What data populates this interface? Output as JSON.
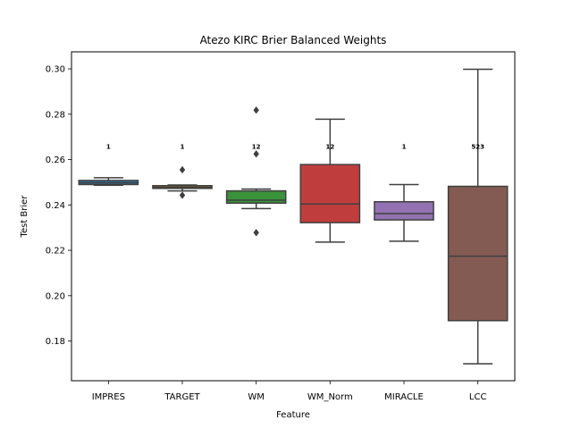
{
  "chart_data": {
    "type": "box",
    "title": "Atezo KIRC Brier Balanced Weights",
    "xlabel": "Feature",
    "ylabel": "Test Brier",
    "ylim": [
      0.1625,
      0.3075
    ],
    "yticks": [
      0.18,
      0.2,
      0.22,
      0.24,
      0.26,
      0.28,
      0.3
    ],
    "ytick_labels": [
      "0.18",
      "0.20",
      "0.22",
      "0.24",
      "0.26",
      "0.28",
      "0.30"
    ],
    "grid": false,
    "categories": [
      "IMPRES",
      "TARGET",
      "WM",
      "WM_Norm",
      "MIRACLE",
      "LCC"
    ],
    "annotation_y": 0.266,
    "boxes": [
      {
        "category": "IMPRES",
        "color": "#3274a1",
        "whisker_low": 0.2487,
        "q1": 0.249,
        "median": 0.2498,
        "q3": 0.2508,
        "whisker_high": 0.252,
        "outliers": [],
        "annotation": "1"
      },
      {
        "category": "TARGET",
        "color": "#e1812c",
        "whisker_low": 0.2462,
        "q1": 0.2473,
        "median": 0.2478,
        "q3": 0.2485,
        "whisker_high": 0.2488,
        "outliers": [
          0.2555,
          0.2443
        ],
        "annotation": "1"
      },
      {
        "category": "WM",
        "color": "#3a923a",
        "whisker_low": 0.2384,
        "q1": 0.2408,
        "median": 0.2421,
        "q3": 0.2462,
        "whisker_high": 0.247,
        "outliers": [
          0.2818,
          0.2625,
          0.2278
        ],
        "annotation": "12"
      },
      {
        "category": "WM_Norm",
        "color": "#c03d3e",
        "whisker_low": 0.2236,
        "q1": 0.2322,
        "median": 0.2404,
        "q3": 0.2578,
        "whisker_high": 0.2778,
        "outliers": [],
        "annotation": "12"
      },
      {
        "category": "MIRACLE",
        "color": "#9372b2",
        "whisker_low": 0.224,
        "q1": 0.2334,
        "median": 0.2362,
        "q3": 0.2414,
        "whisker_high": 0.249,
        "outliers": [],
        "annotation": "1"
      },
      {
        "category": "LCC",
        "color": "#845b53",
        "whisker_low": 0.17,
        "q1": 0.189,
        "median": 0.2174,
        "q3": 0.2482,
        "whisker_high": 0.2998,
        "outliers": [],
        "annotation": "523"
      }
    ]
  }
}
